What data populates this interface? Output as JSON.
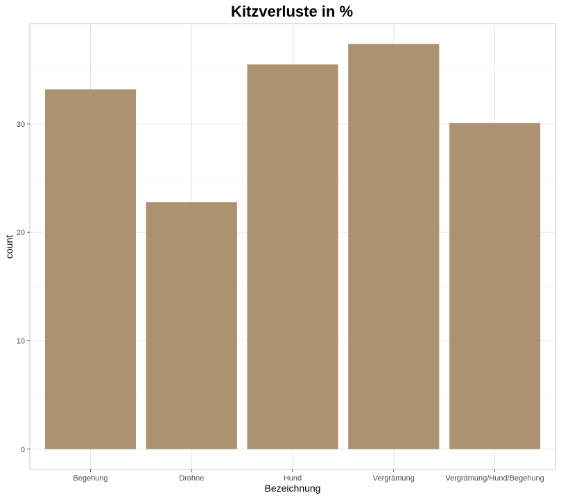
{
  "chart_data": {
    "type": "bar",
    "title": "Kitzverluste in %",
    "xlabel": "Bezeichnung",
    "ylabel": "count",
    "categories": [
      "Begehung",
      "Drohne",
      "Hund",
      "Vergrämung",
      "Vergrämung/Hund/Begehung"
    ],
    "values": [
      33.2,
      22.8,
      35.5,
      37.4,
      30.1
    ],
    "ylim": [
      -1.87,
      39.27
    ],
    "yticks": [
      0,
      10,
      20,
      30
    ],
    "ytick_labels": [
      "0",
      "10",
      "20",
      "30"
    ],
    "grid": true,
    "legend": "none",
    "colors": {
      "bar": "#ad9271",
      "panel_border": "#c8c8c8",
      "grid_major": "#e6e6e6",
      "grid_minor": "#f2f2f2",
      "tick_label": "#4d4d4d"
    }
  }
}
